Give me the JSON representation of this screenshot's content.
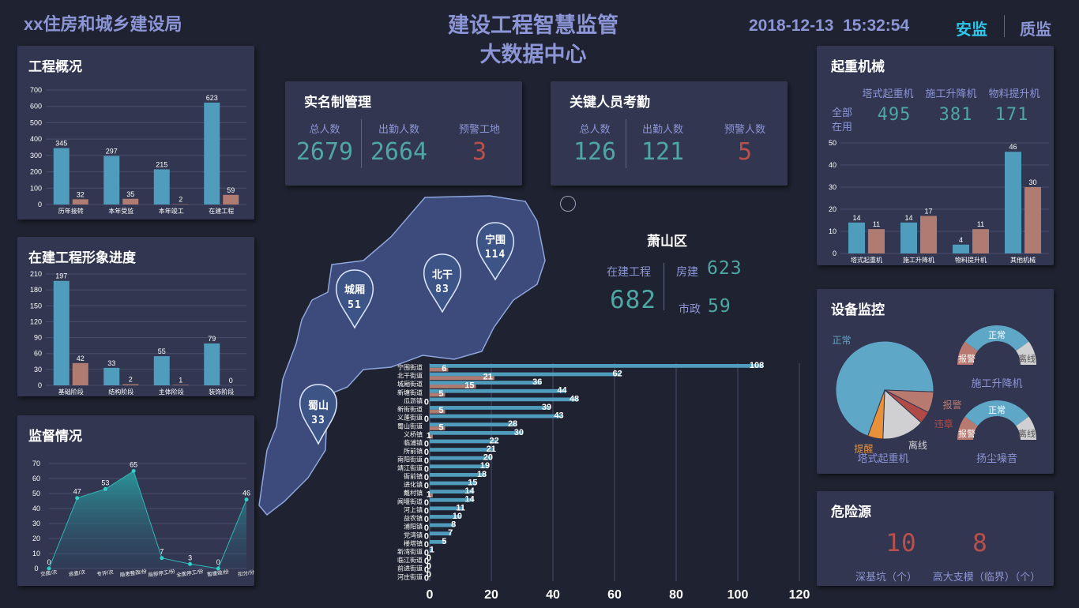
{
  "header": {
    "agency": "xx住房和城乡建设局",
    "title_line1": "建设工程智慧监管",
    "title_line2": "大数据中心",
    "date": "2018-12-13",
    "time": "15:32:54",
    "tab_active": "安监",
    "tab_inactive": "质监"
  },
  "colors": {
    "blue_bar": "#4f9cbd",
    "red_bar": "#b07c72",
    "teal_text": "#4fa6a2",
    "red_text": "#b8504b",
    "accent": "#2cc7ea",
    "orange": "#e8913a"
  },
  "overview": {
    "title": "工程概况",
    "chart_data": {
      "type": "bar",
      "categories": [
        "历年接转",
        "本年受监",
        "本年竣工",
        "在建工程"
      ],
      "series": [
        {
          "values": [
            345,
            297,
            215,
            623
          ]
        },
        {
          "values": [
            32,
            35,
            2,
            59
          ]
        }
      ],
      "ylim": [
        0,
        700
      ],
      "yticks": [
        0,
        100,
        200,
        300,
        400,
        500,
        600,
        700
      ]
    }
  },
  "progress": {
    "title": "在建工程形象进度",
    "chart_data": {
      "type": "bar",
      "categories": [
        "基础阶段",
        "结构阶段",
        "主体阶段",
        "装饰阶段"
      ],
      "series": [
        {
          "values": [
            197,
            33,
            55,
            79
          ]
        },
        {
          "values": [
            42,
            2,
            1,
            0
          ]
        }
      ],
      "ylim": [
        0,
        210
      ],
      "yticks": [
        0,
        30,
        60,
        90,
        120,
        150,
        180,
        210
      ]
    }
  },
  "supervision": {
    "title": "监督情况",
    "chart_data": {
      "type": "area",
      "categories": [
        "交底/次",
        "巡查/次",
        "专评/次",
        "隐患整改/份",
        "局部停工/份",
        "全面停工/份",
        "暂缓竣/份",
        "扣分/分"
      ],
      "values": [
        0,
        47,
        53,
        65,
        7,
        3,
        0,
        46
      ],
      "ylim": [
        0,
        70
      ],
      "yticks": [
        0,
        10,
        20,
        30,
        40,
        50,
        60,
        70
      ]
    }
  },
  "realname": {
    "title": "实名制管理",
    "items": [
      {
        "label": "总人数",
        "value": "2679"
      },
      {
        "label": "出勤人数",
        "value": "2664"
      },
      {
        "label": "预警工地",
        "value": "3"
      }
    ]
  },
  "attendance": {
    "title": "关键人员考勤",
    "items": [
      {
        "label": "总人数",
        "value": "126"
      },
      {
        "label": "出勤人数",
        "value": "121"
      },
      {
        "label": "预警人数",
        "value": "5"
      }
    ]
  },
  "district": {
    "name": "萧山区",
    "in_build_label": "在建工程",
    "in_build_value": "682",
    "housing_label": "房建",
    "housing_value": "623",
    "municipal_label": "市政",
    "municipal_value": "59"
  },
  "map_pins": [
    {
      "name": "宁围",
      "value": "114"
    },
    {
      "name": "北干",
      "value": "83"
    },
    {
      "name": "城厢",
      "value": "51"
    },
    {
      "name": "蜀山",
      "value": "33"
    }
  ],
  "streets": {
    "chart_data": {
      "type": "bar",
      "orientation": "horizontal",
      "categories": [
        "宁围街道",
        "北干街道",
        "城厢街道",
        "新塘街道",
        "瓜沥镇",
        "新街街道",
        "义蓬街道",
        "蜀山街道",
        "义桥镇",
        "临浦镇",
        "所前镇",
        "南阳街道",
        "靖江街道",
        "衙前镇",
        "进化镇",
        "戴村镇",
        "闻堰街道",
        "河上镇",
        "益农镇",
        "浦阳镇",
        "党湾镇",
        "楼塔镇",
        "新湾街道",
        "临江街道",
        "前进街道",
        "河庄街道"
      ],
      "series": [
        {
          "values": [
            108,
            62,
            36,
            44,
            48,
            39,
            43,
            28,
            30,
            22,
            21,
            20,
            19,
            18,
            15,
            14,
            14,
            11,
            10,
            8,
            7,
            5,
            1,
            0,
            0,
            0
          ]
        },
        {
          "values": [
            6,
            21,
            15,
            5,
            0,
            5,
            0,
            5,
            1,
            0,
            0,
            0,
            0,
            0,
            0,
            1,
            0,
            0,
            0,
            0,
            0,
            0,
            0,
            0,
            0,
            0
          ]
        }
      ],
      "xlim": [
        0,
        120
      ],
      "xticks": [
        0,
        20,
        40,
        60,
        80,
        100,
        120
      ]
    }
  },
  "cranes": {
    "title": "起重机械",
    "col_headers": [
      "塔式起重机",
      "施工升降机",
      "物料提升机"
    ],
    "row_label_1": "全部",
    "row_label_2": "在用",
    "totals": [
      "495",
      "381",
      "171"
    ],
    "chart_data": {
      "type": "bar",
      "categories": [
        "塔式起重机",
        "施工升降机",
        "物料提升机",
        "其他机械"
      ],
      "series": [
        {
          "values": [
            14,
            14,
            4,
            46
          ]
        },
        {
          "values": [
            11,
            17,
            11,
            30
          ]
        }
      ],
      "ylim": [
        0,
        50
      ],
      "yticks": [
        0,
        10,
        20,
        30,
        40,
        50
      ]
    }
  },
  "devices": {
    "title": "设备监控",
    "pie": {
      "label": "塔式起重机",
      "chart_data": {
        "type": "pie",
        "labels": [
          "正常",
          "报警",
          "违章",
          "离线",
          "提醒"
        ],
        "values": [
          70,
          7,
          4,
          14,
          5
        ],
        "colors": [
          "#5fa7c6",
          "#b87a70",
          "#b04a47",
          "#d0d0d2",
          "#e8913a"
        ]
      }
    },
    "gauge1": {
      "label": "施工升降机",
      "normal": "正常",
      "alarm": "报警",
      "offline": "离线"
    },
    "gauge2": {
      "label": "扬尘噪音",
      "normal": "正常",
      "alarm": "报警",
      "offline": "离线"
    }
  },
  "hazards": {
    "title": "危险源",
    "items": [
      {
        "label": "深基坑（个）",
        "value": "10"
      },
      {
        "label": "高大支模（临界）（个）",
        "value": "8"
      }
    ]
  }
}
